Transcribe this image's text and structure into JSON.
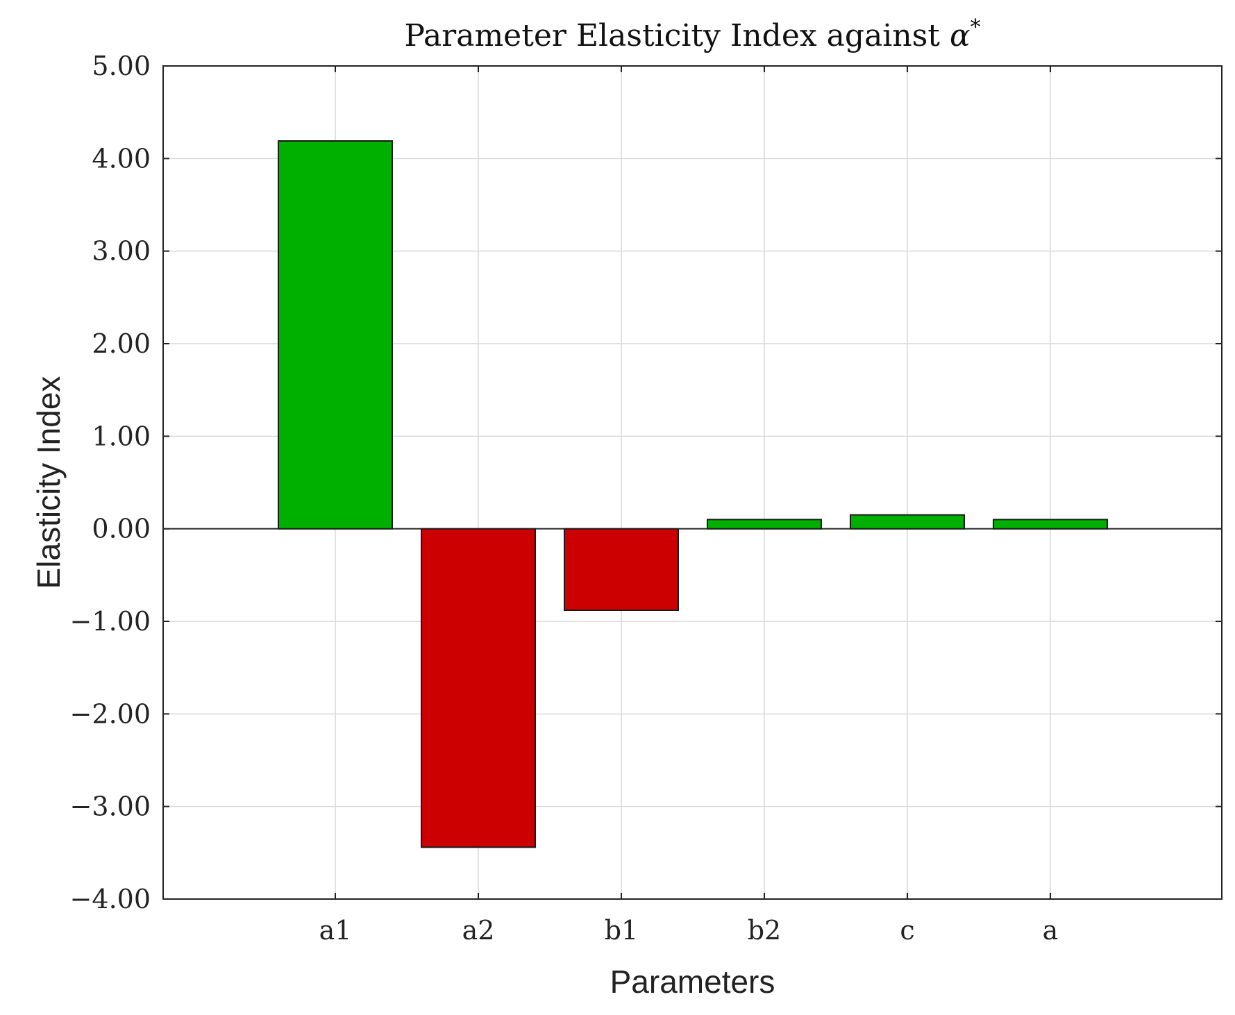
{
  "chart_data": {
    "type": "bar",
    "title_prefix": "Parameter Elasticity Index against ",
    "title_symbol": "α",
    "title_superscript": "*",
    "xlabel": "Parameters",
    "ylabel": "Elasticity Index",
    "categories": [
      "a1",
      "a2",
      "b1",
      "b2",
      "c",
      "a"
    ],
    "values": [
      4.19,
      -3.44,
      -0.88,
      0.1,
      0.15,
      0.1
    ],
    "ylim": [
      -4,
      5
    ],
    "yticks": [
      5,
      4,
      3,
      2,
      1,
      0,
      -1,
      -2,
      -3,
      -4
    ],
    "ytick_labels": [
      "5.00",
      "4.00",
      "3.00",
      "2.00",
      "1.00",
      "0.00",
      "−1.00",
      "−2.00",
      "−3.00",
      "−4.00"
    ],
    "grid": true,
    "colors": {
      "positive": "#00b000",
      "negative": "#cc0000"
    }
  }
}
